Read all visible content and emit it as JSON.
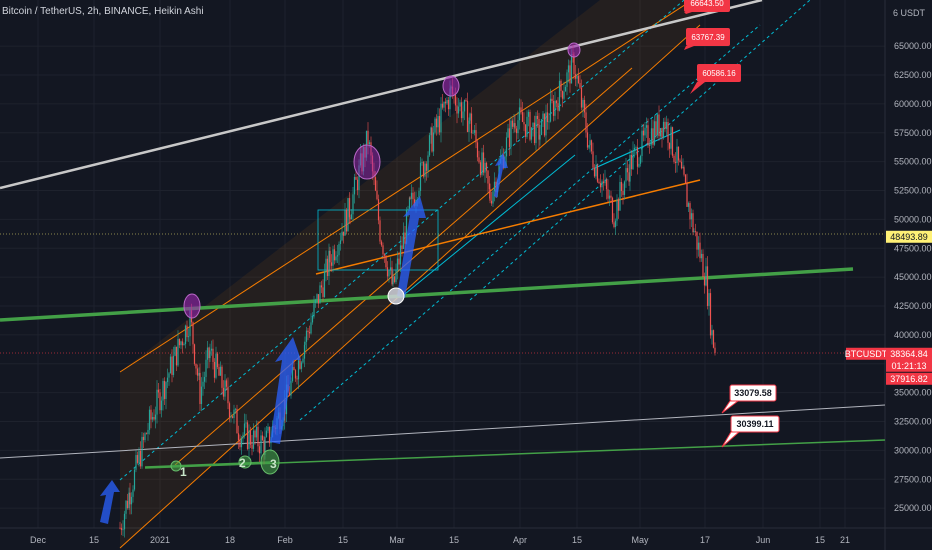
{
  "header": {
    "title": "Bitcoin / TetherUS, 2h, BINANCE, Heikin Ashi"
  },
  "colors": {
    "background": "#131722",
    "grid": "#1e222d",
    "up": "#26a69a",
    "down": "#ef5350",
    "channel": "#f57c00",
    "teal": "#00bcd4",
    "green_line": "#43a047",
    "white_line": "#b2b5be",
    "arrow": "#2962ff",
    "price_tag": "#f23645",
    "yellow_tag": "#fff176"
  },
  "chart_data": {
    "type": "candlestick",
    "symbol": "BTCUSDT",
    "ylim": [
      23300,
      67800
    ],
    "y_axis_ticks": [
      65000,
      62500,
      60000,
      57500,
      55000,
      52500,
      50000,
      47500,
      45000,
      42500,
      40000,
      37500,
      35000,
      32500,
      30000,
      27500,
      25000
    ],
    "y_axis_unit_label": "6 USDT",
    "x_axis_ticks": [
      "Dec",
      "15",
      "2021",
      "18",
      "Feb",
      "15",
      "Mar",
      "15",
      "Apr",
      "15",
      "May",
      "17",
      "Jun",
      "15",
      "21"
    ],
    "price_labels": [
      {
        "symbol": "BTCUSDT",
        "price": "38364.84",
        "countdown": "01:21:13",
        "price_level": 38364.84
      },
      {
        "price": "37916.82",
        "price_level": 37916.82
      },
      {
        "price": "48493.89",
        "price_level": 48493.89
      }
    ],
    "callouts": [
      {
        "text": "66643.50",
        "price_level": 67000
      },
      {
        "text": "63767.39",
        "price_level": 63767.39
      },
      {
        "text": "60586.16",
        "price_level": 60586.16
      },
      {
        "text": "33079.58",
        "price_level": 33079.58
      },
      {
        "text": "30399.11",
        "price_level": 30399.11
      }
    ],
    "markers": [
      "1",
      "2",
      "3"
    ],
    "trend": [
      {
        "date": "Dec 18",
        "close": 23300
      },
      {
        "date": "Dec 25",
        "close": 26500
      },
      {
        "date": "Jan 2",
        "close": 32000
      },
      {
        "date": "Jan 8",
        "close": 41500
      },
      {
        "date": "Jan 12",
        "close": 35000
      },
      {
        "date": "Jan 15",
        "close": 38500
      },
      {
        "date": "Jan 21",
        "close": 31500
      },
      {
        "date": "Jan 27",
        "close": 30500
      },
      {
        "date": "Feb 1",
        "close": 34000
      },
      {
        "date": "Feb 6",
        "close": 39500
      },
      {
        "date": "Feb 10",
        "close": 46500
      },
      {
        "date": "Feb 16",
        "close": 51000
      },
      {
        "date": "Feb 21",
        "close": 57000
      },
      {
        "date": "Feb 25",
        "close": 49000
      },
      {
        "date": "Mar 1",
        "close": 44000
      },
      {
        "date": "Mar 4",
        "close": 51000
      },
      {
        "date": "Mar 10",
        "close": 57000
      },
      {
        "date": "Mar 14",
        "close": 61000
      },
      {
        "date": "Mar 18",
        "close": 58500
      },
      {
        "date": "Mar 25",
        "close": 52000
      },
      {
        "date": "Apr 1",
        "close": 58800
      },
      {
        "date": "Apr 8",
        "close": 57500
      },
      {
        "date": "Apr 14",
        "close": 63500
      },
      {
        "date": "Apr 18",
        "close": 56000
      },
      {
        "date": "Apr 23",
        "close": 50500
      },
      {
        "date": "Apr 27",
        "close": 54800
      },
      {
        "date": "May 3",
        "close": 57500
      },
      {
        "date": "May 8",
        "close": 58500
      },
      {
        "date": "May 12",
        "close": 53000
      },
      {
        "date": "May 14",
        "close": 49000
      },
      {
        "date": "May 16",
        "close": 45000
      },
      {
        "date": "May 18",
        "close": 40000
      },
      {
        "date": "May 19",
        "close": 38364.84
      }
    ]
  }
}
